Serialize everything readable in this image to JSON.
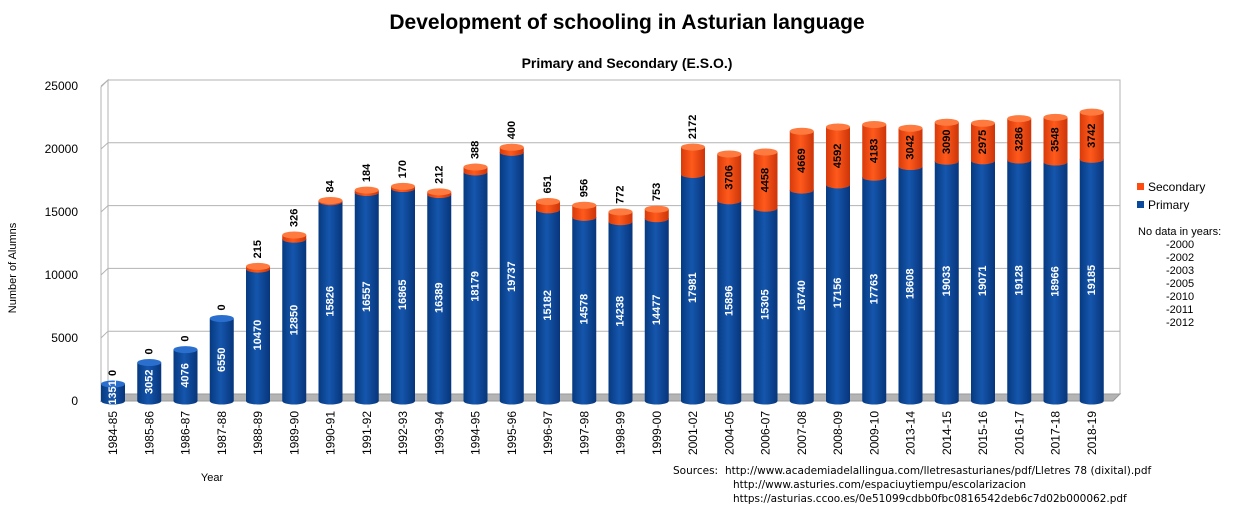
{
  "chart_data": {
    "type": "bar",
    "title": "Development of schooling in Asturian language",
    "subtitle": "Primary and Secondary (E.S.O.)",
    "xlabel": "Year",
    "ylabel": "Number of Alumns",
    "ylim": [
      0,
      25000
    ],
    "yticks": [
      "0",
      "5000",
      "10000",
      "15000",
      "20000",
      "25000"
    ],
    "stacked": true,
    "grid": true,
    "legend_position": "right",
    "categories": [
      "1984-85",
      "1985-86",
      "1986-87",
      "1987-88",
      "1988-89",
      "1989-90",
      "1990-91",
      "1991-92",
      "1992-93",
      "1993-94",
      "1994-95",
      "1995-96",
      "1996-97",
      "1997-98",
      "1998-99",
      "1999-00",
      "2001-02",
      "2004-05",
      "2006-07",
      "2007-08",
      "2008-09",
      "2009-10",
      "2013-14",
      "2014-15",
      "2015-16",
      "2016-17",
      "2017-18",
      "2018-19"
    ],
    "series": [
      {
        "name": "Primary",
        "color": "#0a4a9c",
        "values": [
          1351,
          3052,
          4076,
          6550,
          10470,
          12850,
          15826,
          16557,
          16865,
          16389,
          18179,
          19737,
          15182,
          14578,
          14238,
          14477,
          17981,
          15896,
          15305,
          16740,
          17156,
          17763,
          18608,
          19033,
          19071,
          19128,
          18966,
          19185
        ]
      },
      {
        "name": "Secondary",
        "color": "#ff4a10",
        "values": [
          0,
          0,
          0,
          0,
          215,
          326,
          84,
          184,
          170,
          212,
          388,
          400,
          651,
          956,
          772,
          753,
          2172,
          3706,
          4458,
          4669,
          4592,
          4183,
          3042,
          3090,
          2975,
          3286,
          3548,
          3742
        ]
      }
    ],
    "legend": [
      "Secondary",
      "Primary"
    ]
  },
  "notes": {
    "heading": "No data in years:",
    "years": [
      "-2000",
      "-2002",
      "-2003",
      "-2005",
      "-2010",
      "-2011",
      "-2012"
    ]
  },
  "sources": {
    "label": "Sources:",
    "lines": [
      "http://www.academiadelallingua.com/lletresasturianes/pdf/Lletres 78 (dixital).pdf",
      "http://www.asturies.com/espaciuytiempu/escolarizacion",
      "https://asturias.ccoo.es/0e51099cdbb0fbc0816542deb6c7d02b000062.pdf"
    ]
  }
}
